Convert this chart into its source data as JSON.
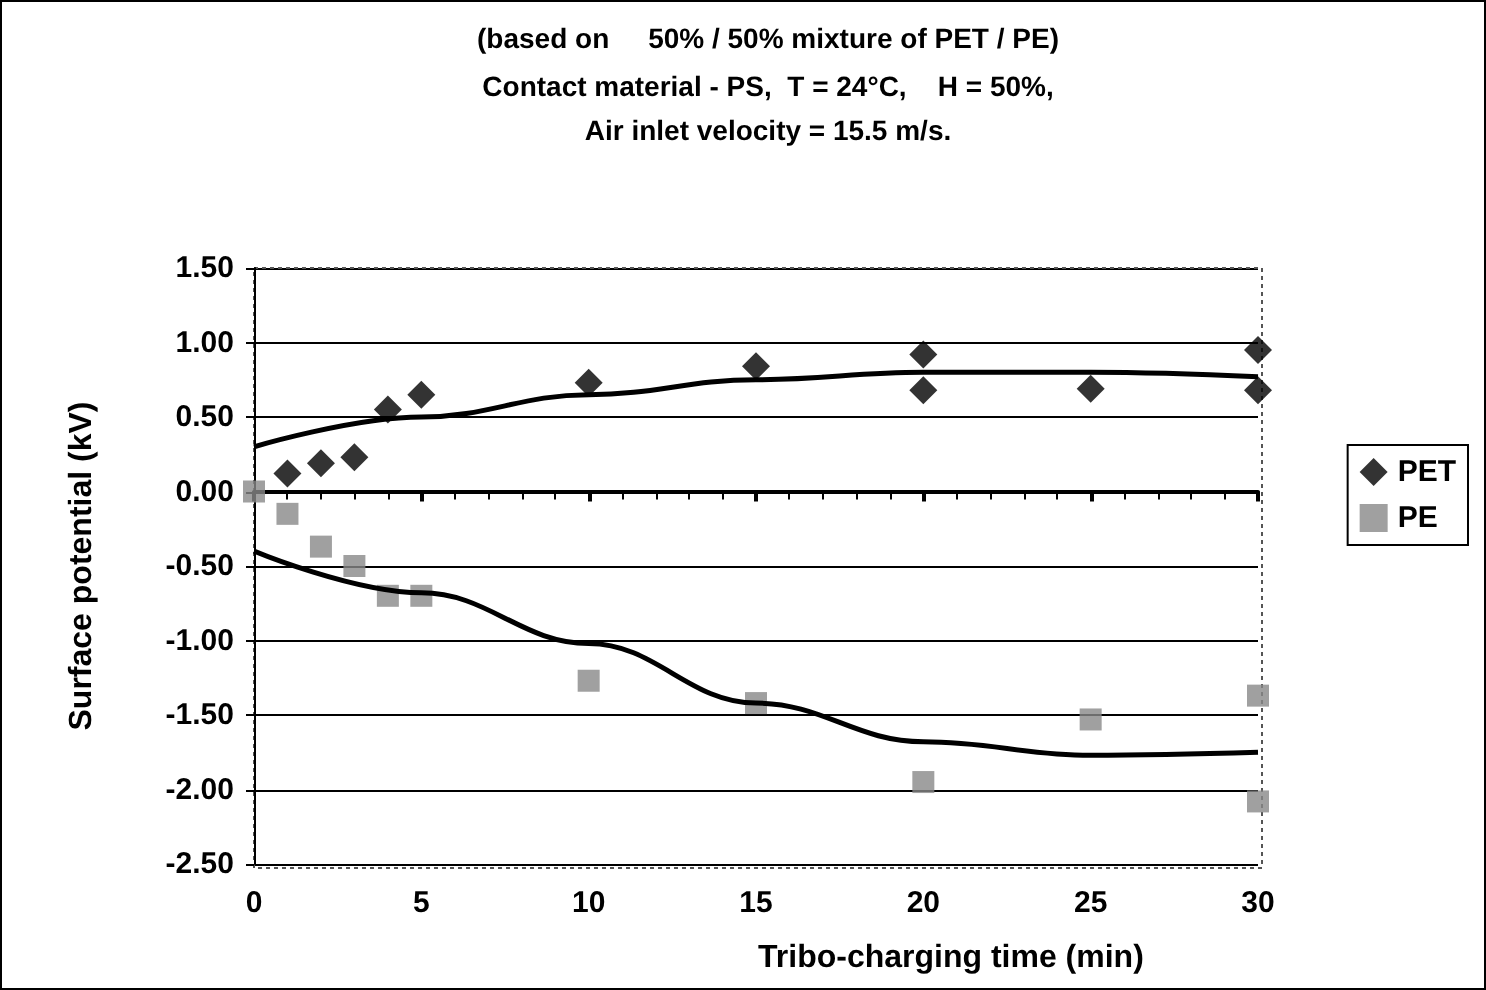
{
  "chart_data": {
    "type": "scatter",
    "title": "(based on     50% / 50% mixture of PET / PE)",
    "subtitle": "Contact material - PS,  T = 24°C,    H = 50%,\nAir inlet velocity = 15.5 m/s.",
    "xlabel": "Tribo-charging time (min)",
    "ylabel": "Surface potential (kV)",
    "xlim": [
      0,
      30
    ],
    "xticks": [
      0,
      5,
      10,
      15,
      20,
      25,
      30
    ],
    "ylim": [
      -2.5,
      1.5
    ],
    "yticks": [
      {
        "value": -2.5,
        "label": "-2.50"
      },
      {
        "value": -2,
        "label": "-2.00"
      },
      {
        "value": -1.5,
        "label": "-1.50"
      },
      {
        "value": -1,
        "label": "-1.00"
      },
      {
        "value": -0.5,
        "label": "-0.50"
      },
      {
        "value": 0,
        "label": "0.00"
      },
      {
        "value": 0.5,
        "label": "0.50"
      },
      {
        "value": 1,
        "label": "1.00"
      },
      {
        "value": 1.5,
        "label": "1.50"
      }
    ],
    "grid": "y",
    "legend": "right",
    "series": [
      {
        "name": "PET",
        "color": "#000000",
        "marker": "diamond",
        "x": [
          1,
          2,
          3,
          4,
          5,
          10,
          15,
          20,
          20,
          25,
          30,
          30
        ],
        "values": [
          0.12,
          0.19,
          0.23,
          0.55,
          0.65,
          0.73,
          0.84,
          0.92,
          0.68,
          0.69,
          0.95,
          0.68
        ]
      },
      {
        "name": "PE",
        "color": "#888888",
        "marker": "square",
        "x": [
          0,
          1,
          2,
          3,
          4,
          5,
          10,
          15,
          20,
          25,
          30,
          30
        ],
        "values": [
          0,
          -0.15,
          -0.37,
          -0.5,
          -0.7,
          -0.7,
          -1.27,
          -1.42,
          -1.95,
          -1.53,
          -1.37,
          -2.08
        ]
      },
      {
        "type": "line",
        "color": "#000000",
        "x": [
          0,
          5,
          10,
          15,
          20,
          25,
          30
        ],
        "values": [
          0.3,
          0.5,
          0.65,
          0.75,
          0.8,
          0.8,
          0.77
        ]
      },
      {
        "type": "line",
        "color": "#000000",
        "x": [
          0,
          5,
          10,
          15,
          20,
          25,
          30
        ],
        "values": [
          -0.4,
          -0.68,
          -1.02,
          -1.42,
          -1.68,
          -1.77,
          -1.75
        ]
      }
    ]
  }
}
